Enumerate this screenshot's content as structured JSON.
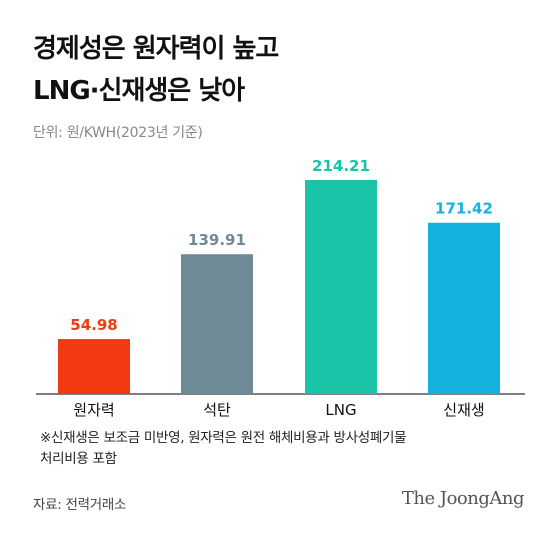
{
  "title_lines": [
    "경제성은 원자력이 높고",
    "LNG·신재생은 낮아"
  ],
  "unit_note": "단위: 원/KWH(2023년 기준)",
  "footnote_lines": [
    "※신재생은 보조금 미반영, 원자력은 원전 해체비용과 방사성폐기물",
    "처리비용 포함"
  ],
  "source": "자료: 전력거래소",
  "credit": "The JoongAng",
  "chart_data": {
    "type": "bar",
    "title": "경제성은 원자력이 높고 LNG·신재생은 낮아",
    "xlabel": "",
    "ylabel": "",
    "unit": "원/KWH",
    "categories": [
      "원자력",
      "석탄",
      "LNG",
      "신재생"
    ],
    "values": [
      54.98,
      139.91,
      214.21,
      171.42
    ],
    "value_labels": [
      "54.98",
      "139.91",
      "214.21",
      "171.42"
    ],
    "colors": [
      "#f23a12",
      "#6d8a96",
      "#18c3a6",
      "#14b3df"
    ],
    "ylim": [
      0,
      214.21
    ],
    "grid": false,
    "legend": "none"
  }
}
